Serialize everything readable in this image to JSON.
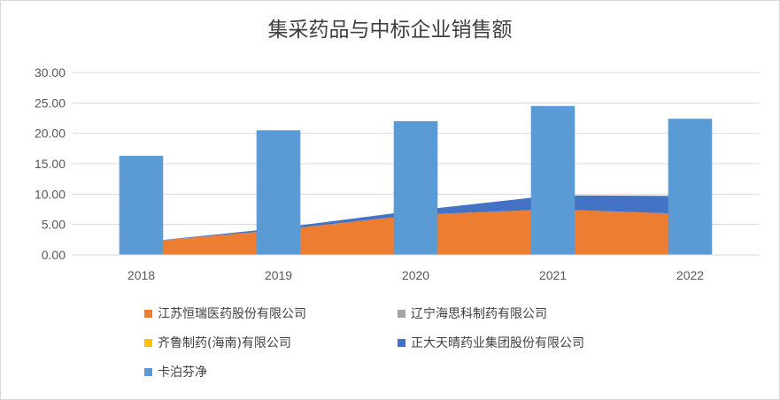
{
  "chart_data": {
    "type": "bar",
    "title": "集采药品与中标企业销售额",
    "xlabel": "",
    "ylabel": "",
    "categories": [
      "2018",
      "2019",
      "2020",
      "2021",
      "2022"
    ],
    "ylim": [
      0,
      30
    ],
    "yticks": [
      "0.00",
      "5.00",
      "10.00",
      "15.00",
      "20.00",
      "25.00",
      "30.00"
    ],
    "grid": true,
    "legend_position": "bottom",
    "series": [
      {
        "name": "江苏恒瑞医药股份有限公司",
        "kind": "area",
        "color": "#ED7D31",
        "values": [
          2.1,
          4.1,
          6.6,
          7.5,
          6.7
        ]
      },
      {
        "name": "辽宁海思科制药有限公司",
        "kind": "area",
        "color": "#A5A5A5",
        "values": [
          0,
          0,
          0,
          0,
          0
        ]
      },
      {
        "name": "齐鲁制药(海南)有限公司",
        "kind": "area",
        "color": "#FFC000",
        "values": [
          0,
          0,
          0,
          0,
          0
        ]
      },
      {
        "name": "正大天晴药业集团股份有限公司",
        "kind": "area",
        "color": "#4472C4",
        "values": [
          0,
          0.3,
          0.7,
          2.3,
          3.0
        ]
      },
      {
        "name": "卡泊芬净",
        "kind": "bar",
        "color": "#5B9BD5",
        "values": [
          16.3,
          20.5,
          22.0,
          24.5,
          22.4
        ]
      }
    ]
  }
}
